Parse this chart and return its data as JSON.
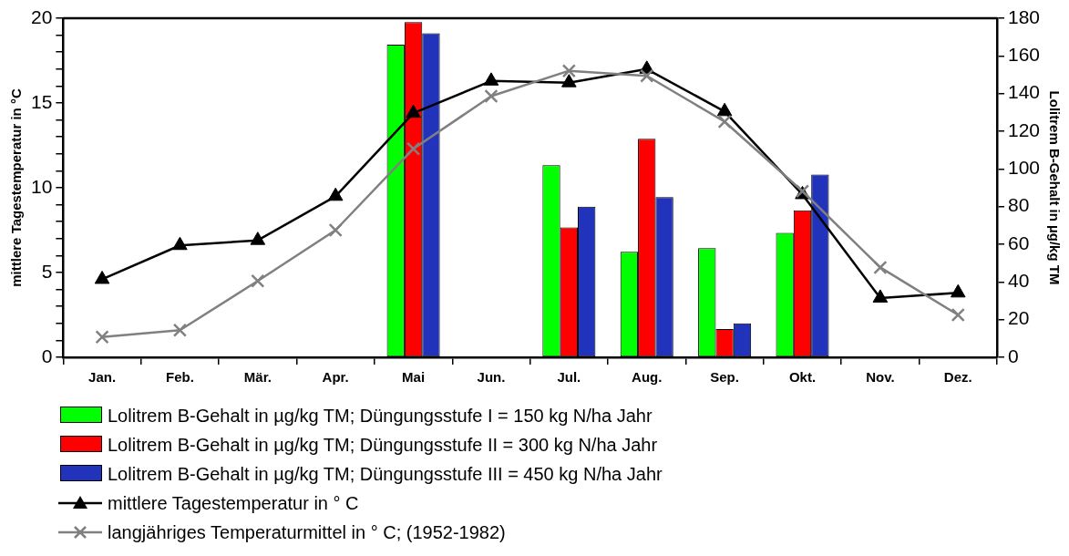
{
  "chart_data": {
    "type": "bar",
    "ylabel": "mittlere Tagestemperatur in °C",
    "y2label": "Lolitrem B-Gehalt in µg/kg TM",
    "categories": [
      "Jan.",
      "Feb.",
      "Mär.",
      "Apr.",
      "Mai",
      "Jun.",
      "Jul.",
      "Aug.",
      "Sep.",
      "Okt.",
      "Nov.",
      "Dez."
    ],
    "series": [
      {
        "name": "Lolitrem B-Gehalt in µg/kg TM; Düngungsstufe I = 150 kg N/ha Jahr",
        "axis": "y2",
        "color": "#00ff00",
        "values": [
          null,
          null,
          null,
          null,
          166,
          null,
          102,
          56,
          58,
          66,
          null,
          null
        ]
      },
      {
        "name": "Lolitrem B-Gehalt in µg/kg TM; Düngungsstufe II = 300 kg N/ha Jahr",
        "axis": "y2",
        "color": "#ff0000",
        "values": [
          null,
          null,
          null,
          null,
          178,
          null,
          69,
          116,
          15,
          78,
          null,
          null
        ]
      },
      {
        "name": "Lolitrem B-Gehalt in µg/kg TM; Düngungsstufe III = 450 kg N/ha Jahr",
        "axis": "y2",
        "color": "#2233bb",
        "values": [
          null,
          null,
          null,
          null,
          172,
          null,
          80,
          85,
          18,
          97,
          null,
          null
        ]
      },
      {
        "name": "mittlere Tagestemperatur in ° C",
        "type": "line",
        "axis": "y",
        "color": "#000000",
        "marker": "triangle",
        "values": [
          4.6,
          6.6,
          6.9,
          9.5,
          14.4,
          16.3,
          16.2,
          17.0,
          14.5,
          9.6,
          3.5,
          3.8
        ]
      },
      {
        "name": "langjähriges Temperaturmittel in ° C; (1952-1982)",
        "type": "line",
        "axis": "y",
        "color": "#808080",
        "marker": "cross",
        "values": [
          1.2,
          1.6,
          4.5,
          7.5,
          12.3,
          15.4,
          16.9,
          16.6,
          13.9,
          9.8,
          5.3,
          2.5
        ]
      }
    ],
    "ylim": [
      0,
      20
    ],
    "yticks": [
      0,
      {
        "value": 1,
        "label": null
      },
      {
        "value": 2,
        "label": null
      },
      {
        "value": 3,
        "label": null
      },
      {
        "value": 4,
        "label": null
      },
      5,
      {
        "value": 6,
        "label": null
      },
      {
        "value": 7,
        "label": null
      },
      {
        "value": 8,
        "label": null
      },
      {
        "value": 9,
        "label": null
      },
      10,
      {
        "value": 11,
        "label": null
      },
      {
        "value": 12,
        "label": null
      },
      {
        "value": 13,
        "label": null
      },
      {
        "value": 14,
        "label": null
      },
      15,
      {
        "value": 16,
        "label": null
      },
      {
        "value": 17,
        "label": null
      },
      {
        "value": 18,
        "label": null
      },
      {
        "value": 19,
        "label": null
      },
      20
    ],
    "y2lim": [
      0,
      180
    ],
    "y2ticks": [
      0,
      20,
      40,
      60,
      80,
      100,
      120,
      140,
      160,
      180
    ],
    "grid": false,
    "legend": "bottom"
  }
}
